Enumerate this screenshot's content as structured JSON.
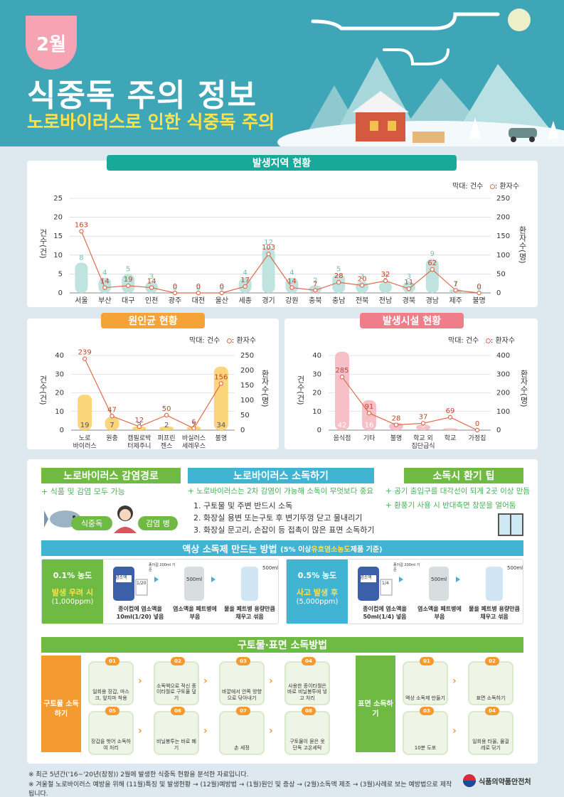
{
  "header": {
    "month": "2월",
    "title": "식중독 주의 정보",
    "subtitle": "노로바이러스로 인한 식중독 주의"
  },
  "colors": {
    "teal": "#18a99b",
    "orange": "#f5a336",
    "pink": "#ef7e8a",
    "green": "#6fba43",
    "sky": "#41b3d3"
  },
  "region": {
    "title": "발생지역 현황",
    "legend_bar": "막대: 건수",
    "legend_line": ": 환자수",
    "ylabel_left": "건수(건)",
    "ylabel_right": "환자수(명)"
  },
  "cause": {
    "title": "원인균 현황",
    "legend_bar": "막대: 건수",
    "legend_line": ": 환자수",
    "ylabel_left": "건수(건)",
    "ylabel_right": "환자수(명)"
  },
  "facility": {
    "title": "발생시설 현황",
    "legend_bar": "막대: 건수",
    "legend_line": ": 환자수",
    "ylabel_left": "건수(건)",
    "ylabel_right": "환자수(명)"
  },
  "chart_data": [
    {
      "type": "bar",
      "categories": [
        "서울",
        "부산",
        "대구",
        "인천",
        "광주",
        "대전",
        "울산",
        "세종",
        "경기",
        "강원",
        "충북",
        "충남",
        "전북",
        "전남",
        "경북",
        "경남",
        "제주",
        "불명"
      ],
      "series": [
        {
          "name": "건수",
          "values": [
            8,
            4,
            5,
            3,
            0,
            0,
            0,
            4,
            12,
            4,
            2,
            5,
            3,
            3,
            3,
            9,
            1,
            0
          ]
        },
        {
          "name": "환자수",
          "values": [
            163,
            14,
            19,
            14,
            0,
            0,
            0,
            17,
            103,
            14,
            7,
            28,
            20,
            32,
            11,
            62,
            7,
            0
          ]
        }
      ],
      "ylim": [
        0,
        25
      ],
      "y2lim": [
        0,
        250
      ],
      "yticks": [
        0,
        5,
        10,
        15,
        20,
        25
      ],
      "y2ticks": [
        0,
        50,
        100,
        150,
        200,
        250
      ]
    },
    {
      "type": "bar",
      "categories": [
        "노로\n바이러스",
        "원충",
        "캠필로박\n터제주니",
        "퍼프린\n젠스",
        "바실러스\n세레우스",
        "불명"
      ],
      "series": [
        {
          "name": "건수",
          "values": [
            19,
            7,
            2,
            2,
            2,
            34
          ]
        },
        {
          "name": "환자수",
          "values": [
            239,
            47,
            12,
            50,
            6,
            156
          ]
        }
      ],
      "ylim": [
        0,
        40
      ],
      "y2lim": [
        0,
        250
      ],
      "yticks": [
        0,
        10,
        20,
        30,
        40
      ],
      "y2ticks": [
        0,
        50,
        100,
        150,
        200,
        250
      ]
    },
    {
      "type": "bar",
      "categories": [
        "음식점",
        "기타",
        "불명",
        "학교 외\n집단급식",
        "학교",
        "가정집"
      ],
      "series": [
        {
          "name": "건수",
          "values": [
            42,
            16,
            4,
            3,
            1,
            0
          ]
        },
        {
          "name": "환자수",
          "values": [
            285,
            91,
            28,
            37,
            69,
            0
          ]
        }
      ],
      "ylim": [
        0,
        40
      ],
      "y2lim": [
        0,
        400
      ],
      "yticks": [
        0,
        10,
        20,
        30,
        40
      ],
      "y2ticks": [
        0,
        100,
        200,
        300,
        400
      ]
    }
  ],
  "route": {
    "title": "노로바이러스 감염경로",
    "line1": "+ 식품 및 감염 모두 가능",
    "tag1": "식중독",
    "tag2": "감염 병"
  },
  "disinfect": {
    "title": "노로바이러스 소독하기",
    "line1": "+ 노로바이러스는 2차 감염이 가능해 소독이 무엇보다 중요",
    "item1": "1. 구토물 및 주변 반드시 소독",
    "item2": "2. 화장실 용변 또는구토 후 변기뚜껑 닫고 물내리기",
    "item3": "3. 화장실 문고리, 손잡이 등 접촉이 많은 표면 소독하기"
  },
  "vent": {
    "title": "소독시 환기 팁",
    "line1": "+ 공기 출입구를 대각선이 되게 2곳 이상 만듬",
    "line2": "+ 환풍기 사용 시 반대측면 창문을 열어둠"
  },
  "liquid": {
    "title": "액상 소독제 만드는 방법",
    "title_note": "(5% 이상 ",
    "title_hl": "유효염소농도",
    "title_end": " 제품 기준)",
    "a_conc": "0.1% 농도",
    "a_when": "발생 우려 시",
    "a_ppm": "(1,000ppm)",
    "a_step1": "종이컵에 염소액을 10ml(1/20) 넣음",
    "a_frac": "1/20",
    "b_conc": "0.5% 농도",
    "b_when": "사고 발생 후",
    "b_ppm": "(5,000ppm)",
    "b_step1": "종이컵에 염소액을 50ml(1/4) 넣음",
    "b_frac": "1/4",
    "bottle_label": "염소액",
    "cup_note": "종이컵 200ml 기준",
    "step2": "염소액을 페트병에 부음",
    "step3": "물을 페트병 용량만큼 채우고 섞음",
    "ml": "500ml",
    "ml2": "500ml",
    "chlorine": "염소액",
    "water": "물"
  },
  "vomit": {
    "title": "구토물·표면 소독방법",
    "left_label": "구토물 소독하기",
    "right_label": "표면 소독하기",
    "steps": [
      {
        "num": "01",
        "cap": "일회용 장갑, 마스크, 앞치마 착용"
      },
      {
        "num": "02",
        "cap": "소독액으로 적신 종이타월로 구토물 덮기"
      },
      {
        "num": "03",
        "cap": "바깥에서 안쪽 방향으로 닦아내기"
      },
      {
        "num": "04",
        "cap": "사용한 종이타월은 바로 비닐봉투에 넣고 처리"
      },
      {
        "num": "05",
        "cap": "장갑을 벗어 소독하여 처리"
      },
      {
        "num": "06",
        "cap": "비닐봉투는 바로 폐기"
      },
      {
        "num": "07",
        "cap": "손 세정"
      },
      {
        "num": "08",
        "cap": "구토물이 묻은 옷 단독 고온세탁"
      }
    ],
    "surface": [
      {
        "num": "01",
        "cap": "액상 소독제 만들기"
      },
      {
        "num": "02",
        "cap": "표면 소독하기"
      },
      {
        "num": "03",
        "cap": "10분 도포"
      },
      {
        "num": "04",
        "cap": "일회용 타올, 물걸레로 닦기"
      }
    ],
    "timer": "10분"
  },
  "footer": {
    "note1": "※ 최근 5년간('16~'20년(잠정)) 2월에 발생한 식중독 현황을 분석한 자료입니다.",
    "note2": "※ 겨울철 노로바이러스 예방을 위해 (11월)특징 및 발생현황 → (12월)예방법 → (1월)원인 및 증상 → (2월)소독액 제조 → (3월)사례로 보는 예방법으로 제작됩니다.",
    "agency": "식품의약품안전처"
  }
}
